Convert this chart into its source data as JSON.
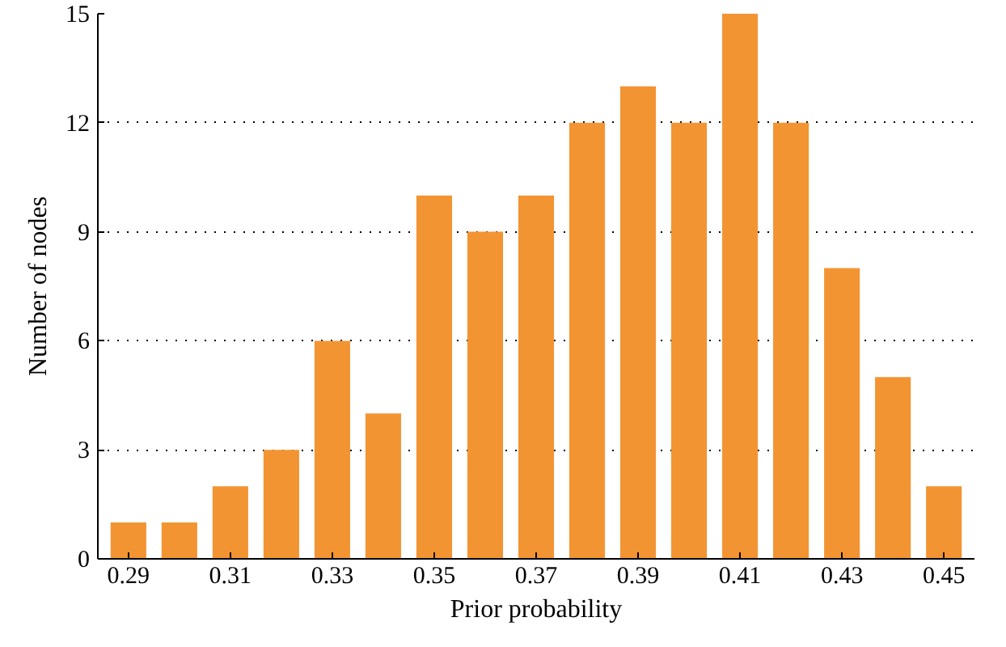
{
  "chart_data": {
    "type": "bar",
    "xlabel": "Prior probability",
    "ylabel": "Number of nodes",
    "x": [
      0.29,
      0.3,
      0.31,
      0.32,
      0.33,
      0.34,
      0.35,
      0.36,
      0.37,
      0.38,
      0.39,
      0.4,
      0.41,
      0.42,
      0.43,
      0.44,
      0.45
    ],
    "values": [
      1,
      1,
      2,
      3,
      6,
      4,
      10,
      9,
      10,
      12,
      13,
      12,
      15,
      12,
      8,
      5,
      2
    ],
    "color": "#f39433",
    "xlim": [
      0.284,
      0.456
    ],
    "xticks": [
      0.29,
      0.31,
      0.33,
      0.35,
      0.37,
      0.39,
      0.41,
      0.43,
      0.45
    ],
    "ylim": [
      0,
      15
    ],
    "yticks": [
      0,
      3,
      6,
      9,
      12,
      15
    ],
    "grid": "y"
  }
}
